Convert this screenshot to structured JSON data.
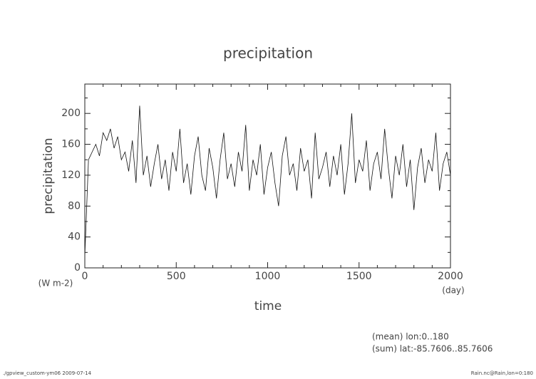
{
  "chart_data": {
    "type": "line",
    "title": "precipitation",
    "x_label": "time",
    "y_label": "precipitation",
    "x_unit": "(day)",
    "y_unit": "(W m-2)",
    "notes": [
      "(mean) lon:0..180",
      "(sum) lat:-85.7606..85.7606"
    ],
    "footer_left": "./gpview_custom-ym06  2009-07-14",
    "footer_right": "Rain.nc@Rain,lon=0:180",
    "xlim": [
      0,
      2000
    ],
    "ylim": [
      0,
      238
    ],
    "xticks": [
      0,
      500,
      1000,
      1500,
      2000
    ],
    "yticks": [
      0,
      40,
      80,
      120,
      160,
      200
    ],
    "xminorticks": [
      100,
      200,
      300,
      400,
      600,
      700,
      800,
      900,
      1100,
      1200,
      1300,
      1400,
      1600,
      1700,
      1800,
      1900
    ],
    "yminorticks": [
      20,
      60,
      100,
      140,
      180,
      220
    ],
    "series": [
      {
        "name": "precipitation",
        "color": "#111111",
        "x": [
          0,
          20,
          40,
          60,
          80,
          100,
          120,
          140,
          160,
          180,
          200,
          220,
          240,
          260,
          280,
          300,
          320,
          340,
          360,
          380,
          400,
          420,
          440,
          460,
          480,
          500,
          520,
          540,
          560,
          580,
          600,
          620,
          640,
          660,
          680,
          700,
          720,
          740,
          760,
          780,
          800,
          820,
          840,
          860,
          880,
          900,
          920,
          940,
          960,
          980,
          1000,
          1020,
          1040,
          1060,
          1080,
          1100,
          1120,
          1140,
          1160,
          1180,
          1200,
          1220,
          1240,
          1260,
          1280,
          1300,
          1320,
          1340,
          1360,
          1380,
          1400,
          1420,
          1440,
          1460,
          1480,
          1500,
          1520,
          1540,
          1560,
          1580,
          1600,
          1620,
          1640,
          1660,
          1680,
          1700,
          1720,
          1740,
          1760,
          1780,
          1800,
          1820,
          1840,
          1860,
          1880,
          1900,
          1920,
          1940,
          1960,
          1980,
          2000
        ],
        "values": [
          15,
          140,
          150,
          160,
          145,
          175,
          165,
          180,
          155,
          170,
          140,
          150,
          125,
          165,
          110,
          210,
          120,
          145,
          105,
          135,
          160,
          115,
          140,
          100,
          150,
          125,
          180,
          110,
          135,
          95,
          145,
          170,
          120,
          100,
          155,
          130,
          90,
          140,
          175,
          115,
          135,
          105,
          150,
          125,
          185,
          100,
          140,
          120,
          160,
          95,
          130,
          150,
          110,
          80,
          145,
          170,
          120,
          135,
          100,
          155,
          125,
          140,
          90,
          175,
          115,
          130,
          150,
          105,
          145,
          120,
          160,
          95,
          135,
          200,
          110,
          140,
          125,
          165,
          100,
          135,
          150,
          115,
          180,
          130,
          90,
          145,
          120,
          160,
          105,
          140,
          75,
          130,
          155,
          110,
          140,
          125,
          175,
          100,
          135,
          150,
          120
        ]
      }
    ]
  }
}
